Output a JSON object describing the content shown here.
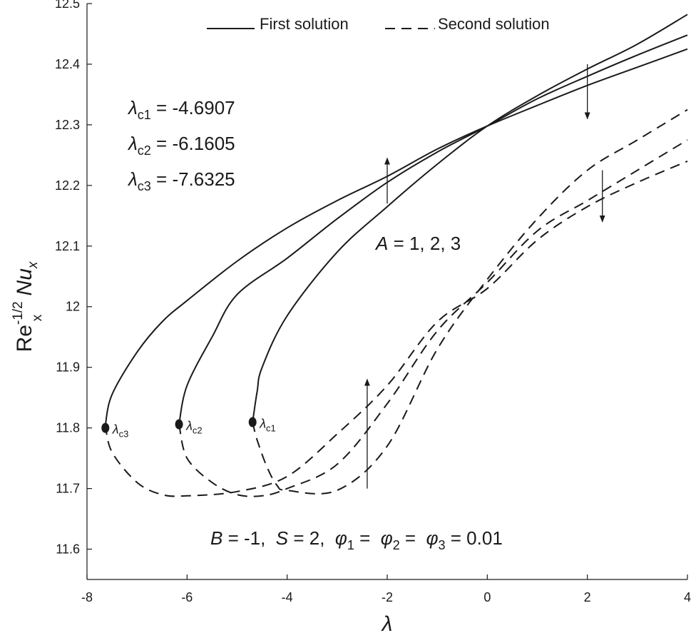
{
  "chart_data": {
    "type": "line",
    "title": "",
    "xlabel": "λ",
    "ylabel": "Re_x^-1/2 Nu_x",
    "ylabel_parts": {
      "base1": "Re",
      "sup": "-1/2",
      "sub": "x",
      "base2": "Nu",
      "sub2": "x"
    },
    "xlim": [
      -8,
      4
    ],
    "ylim": [
      11.55,
      12.5
    ],
    "xticks": [
      -8,
      -6,
      -4,
      -2,
      0,
      2,
      4
    ],
    "xtick_labels": [
      "-8",
      "-6",
      "-4",
      "-2",
      "0",
      "2",
      "4"
    ],
    "yticks": [
      11.6,
      11.7,
      11.8,
      11.9,
      12.0,
      12.1,
      12.2,
      12.3,
      12.4,
      12.5
    ],
    "ytick_labels": [
      "11.6",
      "11.7",
      "11.8",
      "11.9",
      "12",
      "12.1",
      "12.2",
      "12.3",
      "12.4",
      "12.5"
    ],
    "grid": false,
    "legend": {
      "placement": "top",
      "entries": [
        {
          "label": "First solution",
          "style": "solid"
        },
        {
          "label": "Second solution",
          "style": "dashed"
        }
      ]
    },
    "series": [
      {
        "style": "solid",
        "points": [
          [
            -4.6907,
            11.8095
          ],
          [
            -4.6,
            11.86
          ],
          [
            -4.5,
            11.9
          ],
          [
            -4,
            11.985
          ],
          [
            -3,
            12.09
          ],
          [
            -2,
            12.165
          ],
          [
            -1,
            12.235
          ],
          [
            0,
            12.298
          ],
          [
            1,
            12.348
          ],
          [
            2,
            12.392
          ],
          [
            3,
            12.433
          ],
          [
            4,
            12.482
          ]
        ]
      },
      {
        "style": "solid",
        "points": [
          [
            -6.1605,
            11.806
          ],
          [
            -6,
            11.87
          ],
          [
            -5.5,
            11.95
          ],
          [
            -5,
            12.02
          ],
          [
            -4,
            12.08
          ],
          [
            -3,
            12.145
          ],
          [
            -2,
            12.205
          ],
          [
            -1,
            12.255
          ],
          [
            0,
            12.298
          ],
          [
            1,
            12.343
          ],
          [
            2,
            12.38
          ],
          [
            3,
            12.415
          ],
          [
            4,
            12.448
          ]
        ]
      },
      {
        "style": "solid",
        "points": [
          [
            -7.6325,
            11.805
          ],
          [
            -7.5,
            11.855
          ],
          [
            -7,
            11.925
          ],
          [
            -6.5,
            11.975
          ],
          [
            -6,
            12.01
          ],
          [
            -5,
            12.075
          ],
          [
            -4,
            12.13
          ],
          [
            -3,
            12.175
          ],
          [
            -2,
            12.215
          ],
          [
            -1,
            12.26
          ],
          [
            0,
            12.298
          ],
          [
            1,
            12.332
          ],
          [
            2,
            12.365
          ],
          [
            3,
            12.395
          ],
          [
            4,
            12.425
          ]
        ]
      },
      {
        "style": "dashed",
        "points": [
          [
            -4.6907,
            11.8095
          ],
          [
            -4.6,
            11.78
          ],
          [
            -4.4,
            11.735
          ],
          [
            -4.2,
            11.705
          ],
          [
            -4,
            11.697
          ],
          [
            -3,
            11.697
          ],
          [
            -2,
            11.77
          ],
          [
            -1,
            11.93
          ],
          [
            0,
            12.045
          ],
          [
            1,
            12.145
          ],
          [
            2,
            12.225
          ],
          [
            3,
            12.275
          ],
          [
            4,
            12.325
          ]
        ]
      },
      {
        "style": "dashed",
        "points": [
          [
            -6.1605,
            11.806
          ],
          [
            -6,
            11.75
          ],
          [
            -5.5,
            11.71
          ],
          [
            -5,
            11.69
          ],
          [
            -4.5,
            11.688
          ],
          [
            -4,
            11.7
          ],
          [
            -3,
            11.74
          ],
          [
            -2,
            11.84
          ],
          [
            -1,
            11.96
          ],
          [
            0,
            12.04
          ],
          [
            1,
            12.125
          ],
          [
            2,
            12.175
          ],
          [
            3,
            12.225
          ],
          [
            4,
            12.275
          ]
        ]
      },
      {
        "style": "dashed",
        "points": [
          [
            -7.6325,
            11.805
          ],
          [
            -7.5,
            11.76
          ],
          [
            -7,
            11.71
          ],
          [
            -6.5,
            11.69
          ],
          [
            -6,
            11.688
          ],
          [
            -5,
            11.695
          ],
          [
            -4,
            11.72
          ],
          [
            -3,
            11.79
          ],
          [
            -2,
            11.87
          ],
          [
            -1,
            11.975
          ],
          [
            0,
            12.03
          ],
          [
            1,
            12.11
          ],
          [
            2,
            12.165
          ],
          [
            3,
            12.205
          ],
          [
            4,
            12.24
          ]
        ]
      }
    ],
    "critical_points": [
      {
        "x": -4.6907,
        "y": 11.8095,
        "label": "λ",
        "sub": "c1"
      },
      {
        "x": -6.1605,
        "y": 11.806,
        "label": "λ",
        "sub": "c2"
      },
      {
        "x": -7.6325,
        "y": 11.8,
        "label": "λ",
        "sub": "c3"
      }
    ],
    "annotations": {
      "critical_values": [
        {
          "sym": "λ",
          "sub": "c1",
          "text": " = -4.6907"
        },
        {
          "sym": "λ",
          "sub": "c2",
          "text": " = -6.1605"
        },
        {
          "sym": "λ",
          "sub": "c3",
          "text": " = -7.6325"
        }
      ],
      "param_a": {
        "sym": "A",
        "text": " = 1, 2, 3"
      },
      "params": {
        "b": "B",
        "b_val": " = -1,  ",
        "s": "S",
        "s_val": " = 2,  ",
        "phi": "φ",
        "phi1_sub": "1",
        "eq1": " =  ",
        "phi2_sub": "2",
        "eq2": " =  ",
        "phi3_sub": "3",
        "eq3": " = 0.01"
      }
    },
    "arrows": [
      {
        "from": [
          -2,
          12.17
        ],
        "to": [
          -2,
          12.245
        ],
        "direction": "up"
      },
      {
        "from": [
          2,
          12.4
        ],
        "to": [
          2,
          12.31
        ],
        "direction": "down"
      },
      {
        "from": [
          2.3,
          12.225
        ],
        "to": [
          2.3,
          12.14
        ],
        "direction": "down"
      },
      {
        "from": [
          -2.4,
          11.7
        ],
        "to": [
          -2.4,
          11.88
        ],
        "direction": "up"
      }
    ]
  }
}
